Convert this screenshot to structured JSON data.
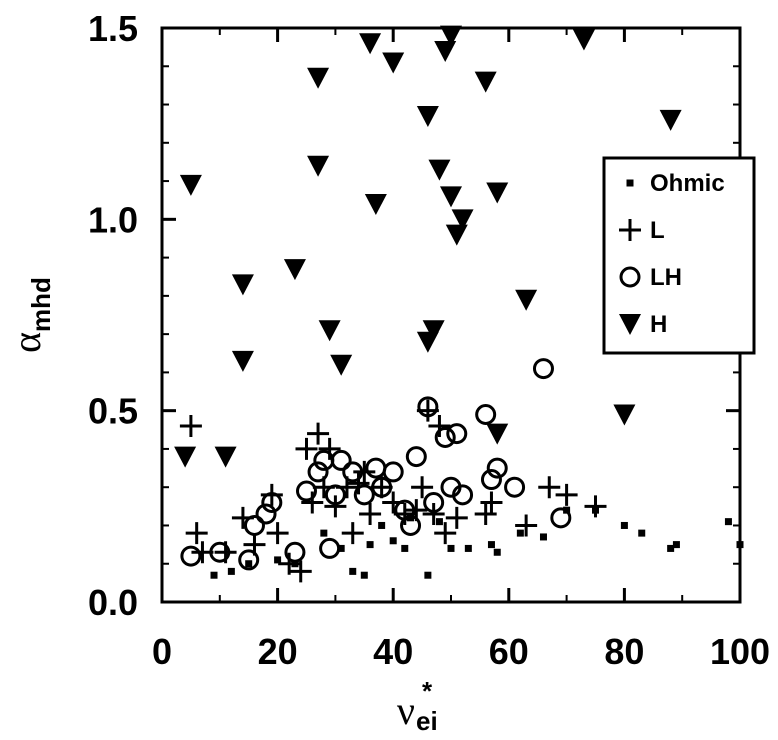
{
  "chart_data": {
    "type": "scatter",
    "xlabel": {
      "base": "ν",
      "sub": "ei",
      "sup": "*"
    },
    "ylabel": {
      "base": "α",
      "sub": "mhd"
    },
    "xlim": [
      0,
      100
    ],
    "ylim": [
      0,
      1.5
    ],
    "x_ticks": [
      0,
      20,
      40,
      60,
      80,
      100
    ],
    "x_tick_labels": [
      "0",
      "20",
      "40",
      "60",
      "80",
      "100"
    ],
    "y_ticks": [
      0,
      0.5,
      1.0,
      1.5
    ],
    "y_tick_labels": [
      "0.0",
      "0.5",
      "1.0",
      "1.5"
    ],
    "legend_position": "right",
    "series": [
      {
        "name": "Ohmic",
        "marker": "small-square",
        "points": [
          [
            9,
            0.07
          ],
          [
            12,
            0.08
          ],
          [
            15,
            0.1
          ],
          [
            20,
            0.11
          ],
          [
            23,
            0.1
          ],
          [
            28,
            0.18
          ],
          [
            31,
            0.14
          ],
          [
            33,
            0.08
          ],
          [
            35,
            0.07
          ],
          [
            36,
            0.15
          ],
          [
            38,
            0.2
          ],
          [
            40,
            0.16
          ],
          [
            42,
            0.14
          ],
          [
            43,
            0.22
          ],
          [
            46,
            0.07
          ],
          [
            48,
            0.21
          ],
          [
            50,
            0.14
          ],
          [
            53,
            0.14
          ],
          [
            57,
            0.15
          ],
          [
            58,
            0.13
          ],
          [
            62,
            0.18
          ],
          [
            66,
            0.17
          ],
          [
            70,
            0.24
          ],
          [
            75,
            0.24
          ],
          [
            80,
            0.2
          ],
          [
            83,
            0.18
          ],
          [
            88,
            0.14
          ],
          [
            89,
            0.15
          ],
          [
            98,
            0.21
          ],
          [
            100,
            0.15
          ]
        ]
      },
      {
        "name": "L",
        "marker": "plus",
        "points": [
          [
            5,
            0.46
          ],
          [
            6,
            0.18
          ],
          [
            7,
            0.13
          ],
          [
            11,
            0.13
          ],
          [
            14,
            0.22
          ],
          [
            16,
            0.15
          ],
          [
            19,
            0.28
          ],
          [
            20,
            0.18
          ],
          [
            22,
            0.1
          ],
          [
            24,
            0.08
          ],
          [
            25,
            0.4
          ],
          [
            26,
            0.26
          ],
          [
            27,
            0.44
          ],
          [
            28,
            0.3
          ],
          [
            29,
            0.4
          ],
          [
            30,
            0.25
          ],
          [
            32,
            0.3
          ],
          [
            33,
            0.18
          ],
          [
            34,
            0.31
          ],
          [
            35,
            0.34
          ],
          [
            36,
            0.23
          ],
          [
            38,
            0.3
          ],
          [
            40,
            0.26
          ],
          [
            42,
            0.23
          ],
          [
            44,
            0.24
          ],
          [
            45,
            0.3
          ],
          [
            46,
            0.5
          ],
          [
            47,
            0.23
          ],
          [
            48,
            0.46
          ],
          [
            49,
            0.18
          ],
          [
            51,
            0.22
          ],
          [
            56,
            0.23
          ],
          [
            57,
            0.26
          ],
          [
            63,
            0.2
          ],
          [
            67,
            0.3
          ],
          [
            70,
            0.28
          ],
          [
            75,
            0.25
          ]
        ]
      },
      {
        "name": "LH",
        "marker": "circle",
        "points": [
          [
            5,
            0.12
          ],
          [
            10,
            0.13
          ],
          [
            15,
            0.11
          ],
          [
            16,
            0.2
          ],
          [
            18,
            0.23
          ],
          [
            19,
            0.26
          ],
          [
            23,
            0.13
          ],
          [
            25,
            0.29
          ],
          [
            27,
            0.34
          ],
          [
            28,
            0.37
          ],
          [
            29,
            0.14
          ],
          [
            30,
            0.28
          ],
          [
            31,
            0.37
          ],
          [
            33,
            0.34
          ],
          [
            35,
            0.28
          ],
          [
            37,
            0.35
          ],
          [
            38,
            0.3
          ],
          [
            40,
            0.34
          ],
          [
            42,
            0.24
          ],
          [
            43,
            0.2
          ],
          [
            44,
            0.38
          ],
          [
            46,
            0.51
          ],
          [
            47,
            0.26
          ],
          [
            49,
            0.43
          ],
          [
            50,
            0.3
          ],
          [
            51,
            0.44
          ],
          [
            52,
            0.28
          ],
          [
            56,
            0.49
          ],
          [
            57,
            0.32
          ],
          [
            58,
            0.35
          ],
          [
            61,
            0.3
          ],
          [
            66,
            0.61
          ],
          [
            69,
            0.22
          ]
        ]
      },
      {
        "name": "H",
        "marker": "triangle-down",
        "points": [
          [
            4,
            0.38
          ],
          [
            5,
            1.09
          ],
          [
            11,
            0.38
          ],
          [
            14,
            0.63
          ],
          [
            14,
            0.83
          ],
          [
            23,
            0.87
          ],
          [
            27,
            1.14
          ],
          [
            27,
            1.37
          ],
          [
            29,
            0.71
          ],
          [
            31,
            0.62
          ],
          [
            36,
            1.46
          ],
          [
            37,
            1.04
          ],
          [
            40,
            1.41
          ],
          [
            46,
            0.68
          ],
          [
            46,
            1.27
          ],
          [
            47,
            0.71
          ],
          [
            48,
            1.13
          ],
          [
            49,
            1.44
          ],
          [
            50,
            1.48
          ],
          [
            50,
            1.06
          ],
          [
            51,
            0.96
          ],
          [
            52,
            1.0
          ],
          [
            56,
            1.36
          ],
          [
            58,
            0.44
          ],
          [
            58,
            1.07
          ],
          [
            63,
            0.79
          ],
          [
            73,
            1.47
          ],
          [
            80,
            0.49
          ],
          [
            88,
            1.26
          ]
        ]
      }
    ]
  }
}
